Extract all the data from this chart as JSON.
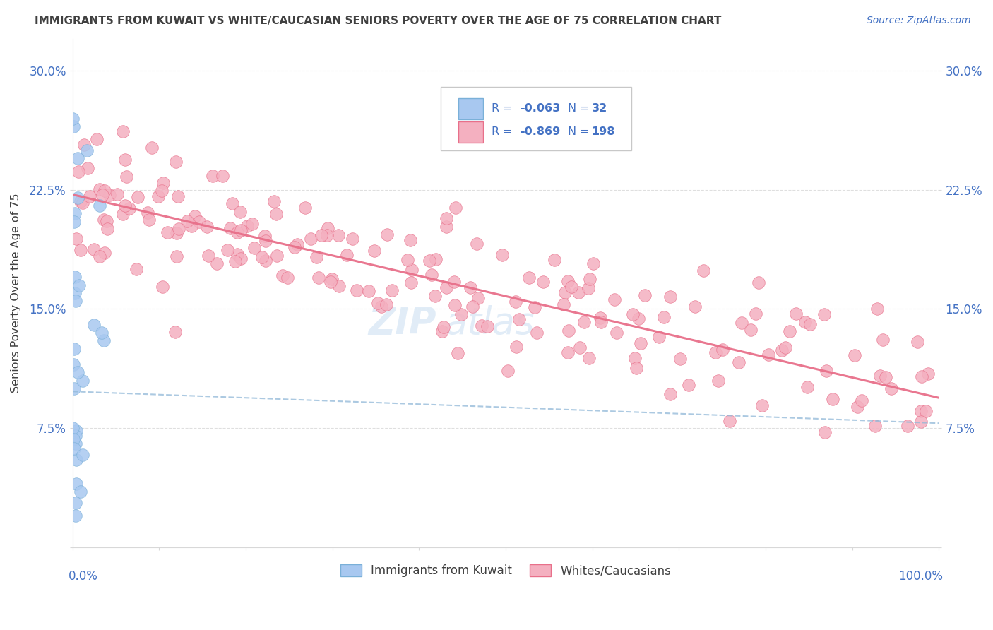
{
  "title": "IMMIGRANTS FROM KUWAIT VS WHITE/CAUCASIAN SENIORS POVERTY OVER THE AGE OF 75 CORRELATION CHART",
  "source": "Source: ZipAtlas.com",
  "ylabel": "Seniors Poverty Over the Age of 75",
  "color_blue": "#a8c8f0",
  "color_pink": "#f4b0c0",
  "line_blue": "#7ab0d8",
  "line_pink": "#e8708a",
  "trend_blue": "#90b8d8",
  "trend_pink": "#e8708a",
  "text_blue": "#4472c4",
  "text_dark": "#404040",
  "grid_color": "#d8d8d8",
  "xlim": [
    0,
    100
  ],
  "ylim": [
    0.0,
    0.32
  ],
  "ytick_vals": [
    0.0,
    0.075,
    0.15,
    0.225,
    0.3
  ],
  "ytick_labels": [
    "",
    "7.5%",
    "15.0%",
    "22.5%",
    "30.0%"
  ],
  "r1": -0.063,
  "n1": 32,
  "r2": -0.869,
  "n2": 198,
  "pink_intercept": 0.222,
  "pink_slope": -0.00128,
  "blue_intercept": 0.098,
  "blue_slope": -0.0002,
  "watermark_text": "ZIPAtlas",
  "watermark_color": "#5b9bd5",
  "watermark_alpha": 0.18
}
